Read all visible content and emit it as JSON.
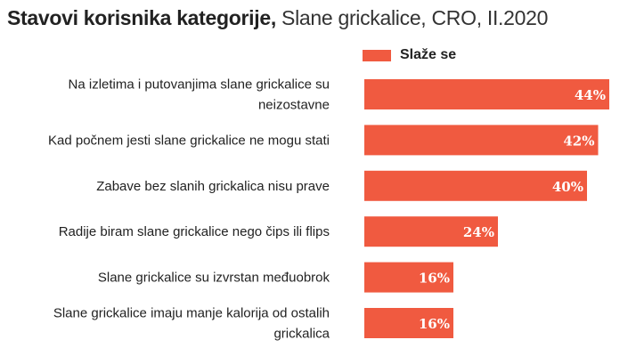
{
  "title": {
    "bold": "Stavovi korisnika kategorije,",
    "light": "Slane grickalice, CRO, II.2020"
  },
  "colors": {
    "bar": "#f05a40"
  },
  "chart_data": {
    "type": "bar",
    "orientation": "horizontal",
    "categories": [
      [
        "Na izletima i putovanjima slane grickalice su",
        "neizostavne"
      ],
      [
        "Kad počnem jesti slane grickalice ne mogu stati"
      ],
      [
        "Zabave bez slanih grickalica nisu prave"
      ],
      [
        "Radije biram slane grickalice nego čips ili flips"
      ],
      [
        "Slane grickalice su izvrstan međuobrok"
      ],
      [
        "Slane grickalice imaju manje kalorija od ostalih",
        "grickalica"
      ]
    ],
    "series": [
      {
        "name": "Slaže se",
        "values": [
          44,
          42,
          40,
          24,
          16,
          16
        ],
        "labels": [
          "44%",
          "42%",
          "40%",
          "24%",
          "16%",
          "16%"
        ]
      }
    ],
    "xlim": [
      0,
      45
    ],
    "legend": "top",
    "grid": false
  }
}
